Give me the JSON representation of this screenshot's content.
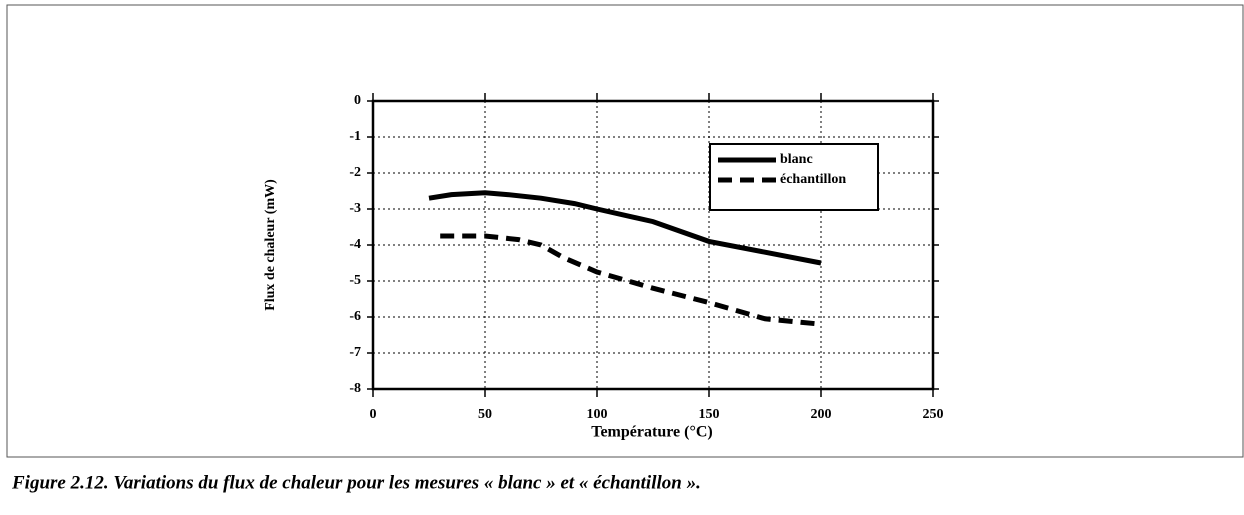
{
  "chart_data": {
    "type": "line",
    "x_label": "Température (°C)",
    "y_label": "Flux de chaleur (mW)",
    "caption": "Figure 2.12. Variations du flux de chaleur pour les mesures « blanc » et « échantillon ».",
    "xlim": [
      0,
      250
    ],
    "xticks": [
      0,
      50,
      100,
      150,
      200,
      250
    ],
    "ylim": [
      -8,
      0
    ],
    "yticks": [
      0,
      -1,
      -2,
      -3,
      -4,
      -5,
      -6,
      -7,
      -8
    ],
    "grid": true,
    "legend": "upper right",
    "series": [
      {
        "name": "blanc",
        "color": "#000000",
        "style": "solid",
        "x": [
          25,
          35,
          50,
          60,
          75,
          90,
          100,
          125,
          150,
          175,
          200
        ],
        "values": [
          -2.7,
          -2.6,
          -2.55,
          -2.6,
          -2.7,
          -2.85,
          -3.0,
          -3.35,
          -3.9,
          -4.2,
          -4.5
        ]
      },
      {
        "name": "échantillon",
        "color": "#000000",
        "style": "dashed",
        "x": [
          30,
          50,
          65,
          75,
          85,
          100,
          125,
          150,
          175,
          200
        ],
        "values": [
          -3.75,
          -3.75,
          -3.85,
          -4.0,
          -4.35,
          -4.75,
          -5.2,
          -5.6,
          -6.05,
          -6.2
        ]
      }
    ]
  }
}
